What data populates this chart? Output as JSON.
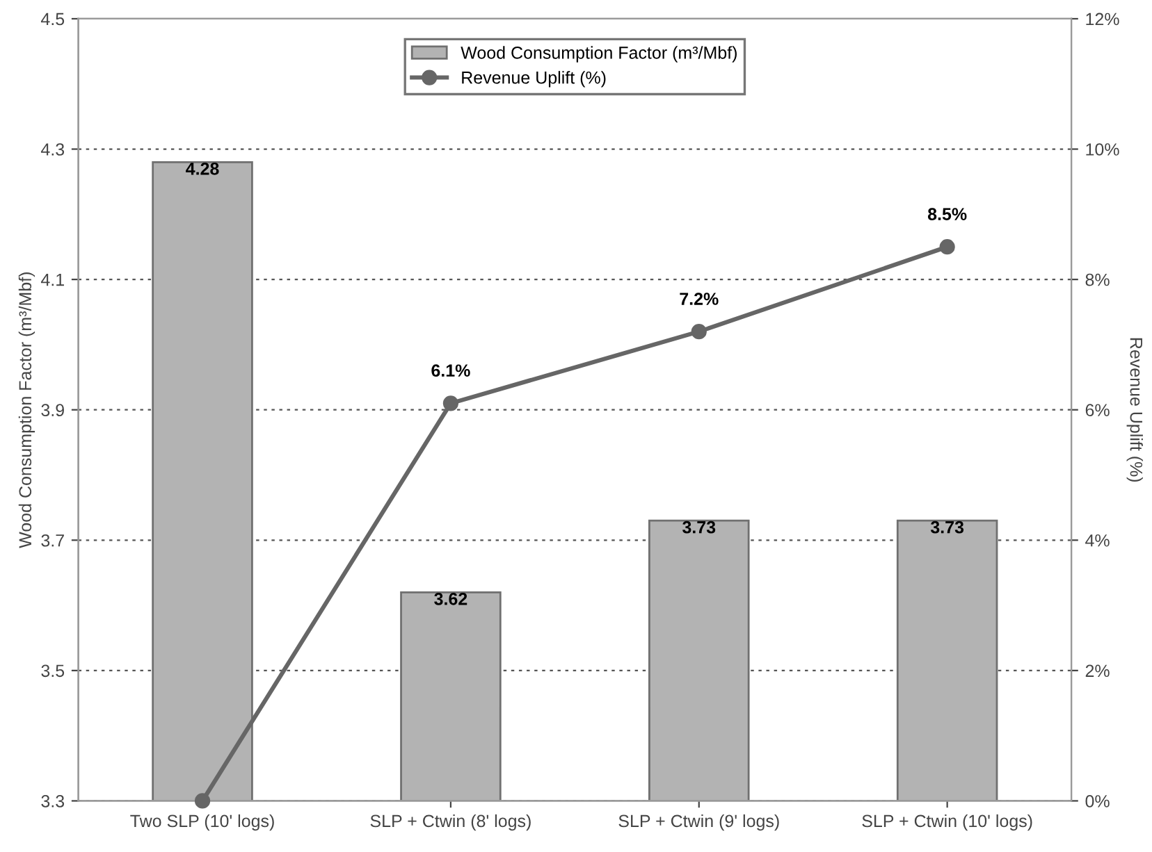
{
  "chart_data": {
    "type": "bar",
    "categories": [
      "Two SLP (10' logs)",
      "SLP + Ctwin (8' logs)",
      "SLP + Ctwin (9' logs)",
      "SLP + Ctwin (10' logs)"
    ],
    "series": [
      {
        "name": "Wood Consumption Factor (m³/Mbf)",
        "color": "#b3b3b3",
        "values": [
          4.28,
          3.62,
          3.73,
          3.73
        ],
        "data_labels": true
      },
      {
        "name": "Revenue Uplift (%)",
        "type": "line",
        "axis": "y2",
        "color": "#666666",
        "marker": "circle",
        "values": [
          0,
          6.1,
          7.2,
          8.5
        ],
        "value_labels": [
          null,
          "6.1%",
          "7.2%",
          "8.5%"
        ]
      }
    ],
    "ylabel": "Wood Consumption Factor (m³/Mbf)",
    "y2label": "Revenue Uplift (%)",
    "ylim": [
      3.3,
      4.5
    ],
    "yticks": [
      3.3,
      3.5,
      3.7,
      3.9,
      4.1,
      4.3,
      4.5
    ],
    "y2lim": [
      0,
      12
    ],
    "y2ticks": [
      {
        "value": 0,
        "label": "0%"
      },
      {
        "value": 2,
        "label": "2%"
      },
      {
        "value": 4,
        "label": "4%"
      },
      {
        "value": 6,
        "label": "6%"
      },
      {
        "value": 8,
        "label": "8%"
      },
      {
        "value": 10,
        "label": "10%"
      },
      {
        "value": 12,
        "label": "12%"
      }
    ],
    "grid": "y",
    "legend": "top"
  }
}
